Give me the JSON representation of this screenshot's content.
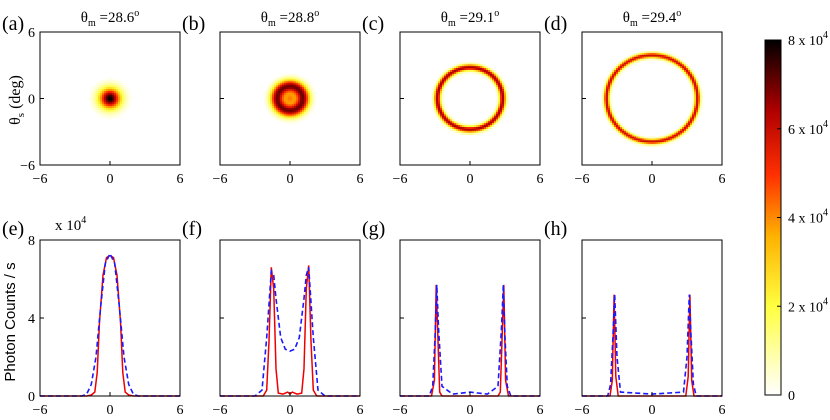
{
  "figure": {
    "colorbar": {
      "ticks": [
        {
          "value": 80000,
          "label": "8 x 10",
          "exp": "4"
        },
        {
          "value": 60000,
          "label": "6 x 10",
          "exp": "4"
        },
        {
          "value": 40000,
          "label": "4 x 10",
          "exp": "4"
        },
        {
          "value": 20000,
          "label": "2 x 10",
          "exp": "4"
        },
        {
          "value": 0,
          "label": "0",
          "exp": ""
        }
      ],
      "range": [
        0,
        80000
      ],
      "colormap": "hot (reversed): white-yellow-red-black"
    },
    "bottom_ylabel": "Photon Counts / s",
    "bottom_scale_text": "x 10",
    "bottom_scale_exp": "4",
    "top_ylabel": "θ",
    "top_ylabel_sub": "s",
    "top_ylabel_unit": " (deg)"
  },
  "chart_data": [
    {
      "type": "heatmap",
      "panel": "(a)",
      "title_sym": "θ",
      "title_sub": "m",
      "title_val": " =28.6",
      "title_deg": "o",
      "xlim": [
        -6,
        6
      ],
      "ylim": [
        -6,
        6
      ],
      "xticks": [
        -6,
        0,
        6
      ],
      "yticks": [
        6,
        0,
        -6
      ],
      "pattern": {
        "shape": "disk",
        "radius_deg": 1.0,
        "ring_radius_deg": 0,
        "ring_width_deg": 0,
        "peak": 80000
      }
    },
    {
      "type": "heatmap",
      "panel": "(b)",
      "title_sym": "θ",
      "title_sub": "m",
      "title_val": " =28.8",
      "title_deg": "o",
      "xlim": [
        -6,
        6
      ],
      "ylim": [
        -6,
        6
      ],
      "xticks": [
        -6,
        0,
        6
      ],
      "yticks": [
        6,
        0,
        -6
      ],
      "pattern": {
        "shape": "ring",
        "radius_deg": 0,
        "ring_radius_deg": 1.1,
        "ring_width_deg": 0.75,
        "peak": 70000
      }
    },
    {
      "type": "heatmap",
      "panel": "(c)",
      "title_sym": "θ",
      "title_sub": "m",
      "title_val": " =29.1",
      "title_deg": "o",
      "xlim": [
        -6,
        6
      ],
      "ylim": [
        -6,
        6
      ],
      "xticks": [
        -6,
        0,
        6
      ],
      "yticks": [
        6,
        0,
        -6
      ],
      "pattern": {
        "shape": "ring",
        "radius_deg": 0,
        "ring_radius_deg": 2.8,
        "ring_width_deg": 0.35,
        "peak": 65000
      }
    },
    {
      "type": "heatmap",
      "panel": "(d)",
      "title_sym": "θ",
      "title_sub": "m",
      "title_val": " =29.4",
      "title_deg": "o",
      "xlim": [
        -6,
        6
      ],
      "ylim": [
        -6,
        6
      ],
      "xticks": [
        -6,
        0,
        6
      ],
      "yticks": [
        6,
        0,
        -6
      ],
      "pattern": {
        "shape": "ring",
        "radius_deg": 0,
        "ring_radius_deg": 3.9,
        "ring_width_deg": 0.3,
        "peak": 60000
      }
    },
    {
      "type": "line",
      "panel": "(e)",
      "xlim": [
        -6,
        6
      ],
      "ylim": [
        0,
        80000
      ],
      "xticks": [
        -6,
        0,
        6
      ],
      "yticks": [
        0,
        4,
        8
      ],
      "series": [
        {
          "style": "solid-red",
          "x": [
            -6,
            -2.0,
            -1.6,
            -1.3,
            -1.1,
            -0.9,
            -0.6,
            -0.3,
            0,
            0.3,
            0.6,
            0.9,
            1.1,
            1.3,
            1.6,
            2.0,
            6
          ],
          "y": [
            0,
            0,
            500,
            2000,
            12000,
            38000,
            62000,
            71000,
            72000,
            71000,
            62000,
            38000,
            12000,
            2000,
            500,
            0,
            0
          ]
        },
        {
          "style": "dashed-blue",
          "x": [
            -6,
            -2.4,
            -2.0,
            -1.6,
            -1.2,
            -0.8,
            -0.4,
            0,
            0.4,
            0.8,
            1.2,
            1.6,
            2.0,
            2.4,
            6
          ],
          "y": [
            0,
            0,
            1000,
            6000,
            20000,
            46000,
            68000,
            73000,
            68000,
            46000,
            20000,
            6000,
            1000,
            0,
            0
          ]
        }
      ]
    },
    {
      "type": "line",
      "panel": "(f)",
      "xlim": [
        -6,
        6
      ],
      "ylim": [
        0,
        80000
      ],
      "xticks": [
        -6,
        0,
        6
      ],
      "yticks": [
        0,
        4,
        8
      ],
      "series": [
        {
          "style": "solid-red",
          "x": [
            -6,
            -2.3,
            -2.0,
            -1.8,
            -1.6,
            -1.4,
            -1.2,
            -1.0,
            -0.6,
            -0.2,
            0,
            0.2,
            0.6,
            1.0,
            1.2,
            1.4,
            1.6,
            1.8,
            2.0,
            2.3,
            6
          ],
          "y": [
            0,
            0,
            3000,
            28000,
            66000,
            55000,
            14000,
            1500,
            1000,
            2000,
            1000,
            2000,
            1000,
            1500,
            14000,
            55000,
            67000,
            28000,
            3000,
            0,
            0
          ]
        },
        {
          "style": "dashed-blue",
          "x": [
            -6,
            -3.0,
            -2.4,
            -2.0,
            -1.6,
            -1.4,
            -1.2,
            -0.8,
            -0.4,
            0,
            0.4,
            0.8,
            1.2,
            1.4,
            1.6,
            2.0,
            2.4,
            3.0,
            6
          ],
          "y": [
            0,
            0,
            3000,
            30000,
            64000,
            62000,
            50000,
            30000,
            24000,
            23000,
            24000,
            30000,
            50000,
            62000,
            66000,
            30000,
            3000,
            0,
            0
          ]
        }
      ]
    },
    {
      "type": "line",
      "panel": "(g)",
      "xlim": [
        -6,
        6
      ],
      "ylim": [
        0,
        80000
      ],
      "xticks": [
        -6,
        0,
        6
      ],
      "yticks": [
        0,
        4,
        8
      ],
      "series": [
        {
          "style": "solid-red",
          "x": [
            -6,
            -3.3,
            -3.05,
            -2.9,
            -2.75,
            -2.6,
            -2.4,
            2.4,
            2.6,
            2.75,
            2.9,
            3.05,
            3.3,
            6
          ],
          "y": [
            0,
            0,
            8000,
            57000,
            30000,
            2000,
            0,
            0,
            2000,
            30000,
            57000,
            8000,
            0,
            0
          ]
        },
        {
          "style": "dashed-blue",
          "x": [
            -6,
            -3.5,
            -3.2,
            -3.0,
            -2.85,
            -2.7,
            -2.4,
            -1.5,
            0,
            1.5,
            2.4,
            2.7,
            2.85,
            3.0,
            3.2,
            3.5,
            6
          ],
          "y": [
            0,
            0,
            5000,
            30000,
            57000,
            35000,
            5000,
            1000,
            2000,
            1000,
            5000,
            35000,
            57000,
            30000,
            5000,
            0,
            0
          ]
        }
      ]
    },
    {
      "type": "line",
      "panel": "(h)",
      "xlim": [
        -6,
        6
      ],
      "ylim": [
        0,
        80000
      ],
      "xticks": [
        -6,
        0,
        6
      ],
      "yticks": [
        0,
        4,
        8
      ],
      "series": [
        {
          "style": "solid-red",
          "x": [
            -6,
            -3.6,
            -3.4,
            -3.25,
            -3.1,
            -2.9,
            2.9,
            3.1,
            3.25,
            3.4,
            3.6,
            6
          ],
          "y": [
            0,
            0,
            8000,
            52000,
            10000,
            0,
            0,
            10000,
            52000,
            8000,
            0,
            0
          ]
        },
        {
          "style": "dashed-blue",
          "x": [
            -6,
            -3.8,
            -3.55,
            -3.35,
            -3.2,
            -3.0,
            -2.7,
            0,
            2.7,
            3.0,
            3.2,
            3.35,
            3.55,
            3.8,
            6
          ],
          "y": [
            0,
            0,
            6000,
            30000,
            52000,
            20000,
            2000,
            1000,
            2000,
            20000,
            52000,
            30000,
            6000,
            0,
            0
          ]
        }
      ]
    }
  ]
}
